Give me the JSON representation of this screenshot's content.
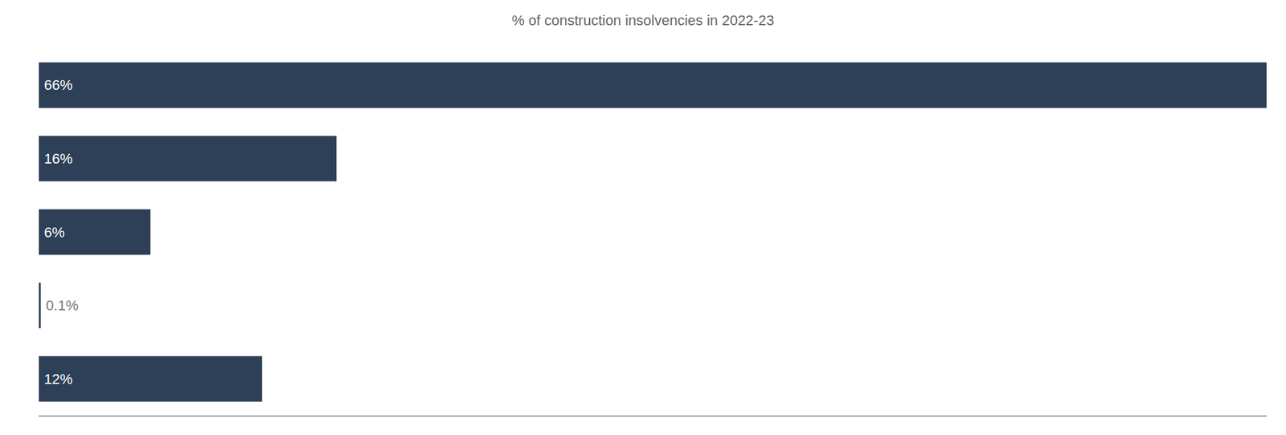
{
  "chart_data": {
    "type": "bar",
    "orientation": "horizontal",
    "title": "% of construction insolvencies in 2022-23",
    "categories": [
      null,
      null,
      null,
      null,
      null
    ],
    "values": [
      66,
      16,
      6,
      0.1,
      12
    ],
    "value_labels": [
      "66%",
      "16%",
      "6%",
      "0.1%",
      "12%"
    ],
    "data_labels": true,
    "color": "#2d4058",
    "xlim": [
      0,
      66
    ],
    "grid": false,
    "tick_labels": false
  }
}
